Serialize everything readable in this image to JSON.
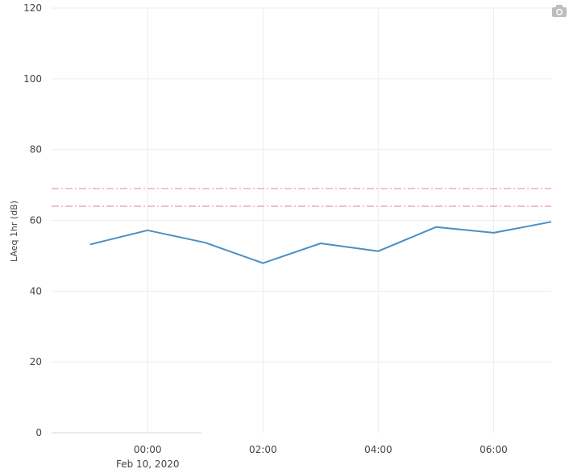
{
  "toolbar": {
    "snapshot_icon": "camera-icon"
  },
  "chart_data": {
    "type": "line",
    "ylabel": "LAeq 1hr (dB)",
    "ylim": [
      0,
      120
    ],
    "yticks": [
      0,
      20,
      40,
      60,
      80,
      100,
      120
    ],
    "xlim": [
      "2020-02-09 22:20",
      "2020-02-10 07:00"
    ],
    "x_ticks": [
      {
        "x": "2020-02-10 00:00",
        "label": "00:00",
        "sublabel": "Feb 10, 2020"
      },
      {
        "x": "2020-02-10 02:00",
        "label": "02:00"
      },
      {
        "x": "2020-02-10 04:00",
        "label": "04:00"
      },
      {
        "x": "2020-02-10 06:00",
        "label": "06:00"
      }
    ],
    "grid": true,
    "series": [
      {
        "color": "#4a8fc4",
        "x": [
          "2020-02-09 23:00",
          "2020-02-10 00:00",
          "2020-02-10 01:00",
          "2020-02-10 02:00",
          "2020-02-10 03:00",
          "2020-02-10 04:00",
          "2020-02-10 05:00",
          "2020-02-10 06:00",
          "2020-02-10 07:00"
        ],
        "y": [
          53.2,
          57.2,
          53.7,
          47.9,
          53.5,
          51.3,
          58.1,
          56.5,
          59.6
        ]
      }
    ],
    "reference_lines": [
      {
        "y": 69,
        "color": "#e8a0aa",
        "style": "dash-dot"
      },
      {
        "y": 64,
        "color": "#e8a0aa",
        "style": "dash-dot"
      }
    ]
  }
}
